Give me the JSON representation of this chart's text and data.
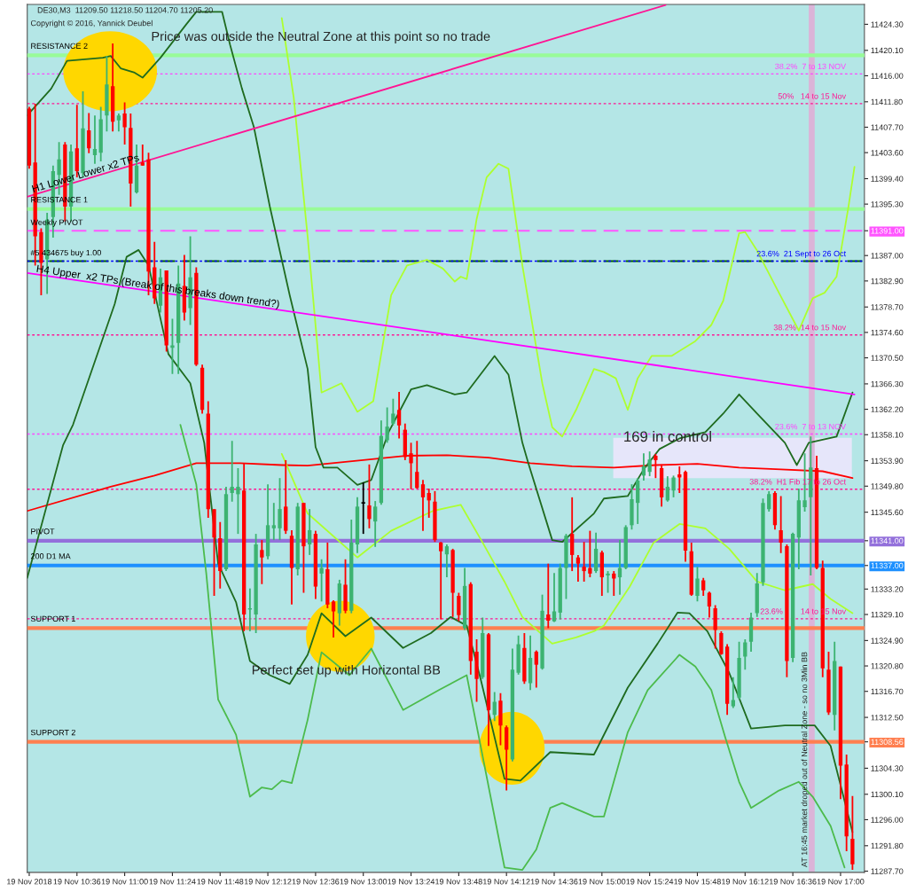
{
  "chart_data": {
    "type": "candlestick",
    "title": "DE30,M3  11209.50 11218.50 11204.70 11205.20",
    "subtitle": "Copyright © 2016, Yannick Deubel",
    "x": [
      "2018-11-19T10:12",
      "2018-11-19T10:15",
      "2018-11-19T10:18",
      "2018-11-19T10:21",
      "2018-11-19T10:24",
      "2018-11-19T10:27",
      "2018-11-19T10:30",
      "2018-11-19T10:33",
      "2018-11-19T10:36",
      "2018-11-19T10:39",
      "2018-11-19T10:42",
      "2018-11-19T10:45",
      "2018-11-19T10:48",
      "2018-11-19T10:51",
      "2018-11-19T10:54",
      "2018-11-19T10:57",
      "2018-11-19T11:00",
      "2018-11-19T11:03",
      "2018-11-19T11:06",
      "2018-11-19T11:09",
      "2018-11-19T11:12",
      "2018-11-19T11:15",
      "2018-11-19T11:18",
      "2018-11-19T11:21",
      "2018-11-19T11:24",
      "2018-11-19T11:27",
      "2018-11-19T11:30",
      "2018-11-19T11:33",
      "2018-11-19T11:36",
      "2018-11-19T11:39",
      "2018-11-19T11:42",
      "2018-11-19T11:45",
      "2018-11-19T11:48",
      "2018-11-19T11:51",
      "2018-11-19T11:54",
      "2018-11-19T11:57",
      "2018-11-19T12:00",
      "2018-11-19T12:03",
      "2018-11-19T12:06",
      "2018-11-19T12:09",
      "2018-11-19T12:12",
      "2018-11-19T12:15",
      "2018-11-19T12:18",
      "2018-11-19T12:21",
      "2018-11-19T12:24",
      "2018-11-19T12:27",
      "2018-11-19T12:30",
      "2018-11-19T12:33",
      "2018-11-19T12:36",
      "2018-11-19T12:39",
      "2018-11-19T12:42",
      "2018-11-19T12:45",
      "2018-11-19T12:48",
      "2018-11-19T12:51",
      "2018-11-19T12:54",
      "2018-11-19T12:57",
      "2018-11-19T13:00",
      "2018-11-19T13:03",
      "2018-11-19T13:06",
      "2018-11-19T13:09",
      "2018-11-19T13:12",
      "2018-11-19T13:15",
      "2018-11-19T13:18",
      "2018-11-19T13:21",
      "2018-11-19T13:24",
      "2018-11-19T13:27",
      "2018-11-19T13:30",
      "2018-11-19T13:33",
      "2018-11-19T13:36",
      "2018-11-19T13:39",
      "2018-11-19T13:42",
      "2018-11-19T13:45",
      "2018-11-19T13:48",
      "2018-11-19T13:51",
      "2018-11-19T13:54",
      "2018-11-19T13:57",
      "2018-11-19T14:00",
      "2018-11-19T14:03",
      "2018-11-19T14:06",
      "2018-11-19T14:09",
      "2018-11-19T14:12",
      "2018-11-19T14:15",
      "2018-11-19T14:18",
      "2018-11-19T14:21",
      "2018-11-19T14:24",
      "2018-11-19T14:27",
      "2018-11-19T14:30",
      "2018-11-19T14:33",
      "2018-11-19T14:36",
      "2018-11-19T14:39",
      "2018-11-19T14:42",
      "2018-11-19T14:45",
      "2018-11-19T14:48",
      "2018-11-19T14:51",
      "2018-11-19T14:54",
      "2018-11-19T14:57",
      "2018-11-19T15:00",
      "2018-11-19T15:03",
      "2018-11-19T15:06",
      "2018-11-19T15:09",
      "2018-11-19T15:12",
      "2018-11-19T15:15",
      "2018-11-19T15:18",
      "2018-11-19T15:21",
      "2018-11-19T15:24",
      "2018-11-19T15:27",
      "2018-11-19T15:30",
      "2018-11-19T15:33",
      "2018-11-19T15:36",
      "2018-11-19T15:39",
      "2018-11-19T15:42",
      "2018-11-19T15:45",
      "2018-11-19T15:48",
      "2018-11-19T15:51",
      "2018-11-19T15:54",
      "2018-11-19T15:57",
      "2018-11-19T16:00",
      "2018-11-19T16:03",
      "2018-11-19T16:06",
      "2018-11-19T16:09",
      "2018-11-19T16:12",
      "2018-11-19T16:15",
      "2018-11-19T16:18",
      "2018-11-19T16:21",
      "2018-11-19T16:24",
      "2018-11-19T16:27",
      "2018-11-19T16:30",
      "2018-11-19T16:33",
      "2018-11-19T16:36",
      "2018-11-19T16:39",
      "2018-11-19T16:42",
      "2018-11-19T16:45",
      "2018-11-19T16:48",
      "2018-11-19T16:51",
      "2018-11-19T16:54",
      "2018-11-19T16:57",
      "2018-11-19T17:00",
      "2018-11-19T17:03",
      "2018-11-19T17:06"
    ],
    "ohlc": [
      [
        11410.7,
        11411.0,
        11401.0,
        11401.5
      ],
      [
        11402.0,
        11411.5,
        11385.4,
        11390.1
      ],
      [
        11390.8,
        11391.4,
        11380.6,
        11385.8
      ],
      [
        11386.4,
        11393.9,
        11380.8,
        11392.8
      ],
      [
        11393.2,
        11401.5,
        11389.9,
        11400.6
      ],
      [
        11400.0,
        11405.3,
        11396.8,
        11402.5
      ],
      [
        11404.9,
        11405.3,
        11392.5,
        11394.9
      ],
      [
        11394.9,
        11404.9,
        11392.5,
        11403.8
      ],
      [
        11404.3,
        11411.3,
        11399.6,
        11400.6
      ],
      [
        11400.3,
        11413.5,
        11399.6,
        11407.5
      ],
      [
        11407.2,
        11410.0,
        11403.5,
        11404.3
      ],
      [
        11403.2,
        11409.6,
        11401.8,
        11404.2
      ],
      [
        11403.6,
        11411.0,
        11402.2,
        11409.0
      ],
      [
        11409.6,
        11419.2,
        11407.0,
        11414.6
      ],
      [
        11414.3,
        11421.2,
        11407.0,
        11408.6
      ],
      [
        11408.8,
        11409.9,
        11407.0,
        11409.6
      ],
      [
        11409.9,
        11411.7,
        11404.9,
        11407.7
      ],
      [
        11407.6,
        11409.9,
        11394.9,
        11398.6
      ],
      [
        11397.2,
        11404.9,
        11397.0,
        11401.5
      ],
      [
        11402.0,
        11404.9,
        11401.5,
        11401.5
      ],
      [
        11402.5,
        11403.6,
        11380.6,
        11384.4
      ],
      [
        11385.1,
        11389.2,
        11379.2,
        11380.1
      ],
      [
        11378.9,
        11384.9,
        11377.8,
        11383.5
      ],
      [
        11384.6,
        11384.6,
        11371.5,
        11372.5
      ],
      [
        11372.1,
        11376.8,
        11367.9,
        11372.5
      ],
      [
        11372.9,
        11385.4,
        11367.9,
        11382.5
      ],
      [
        11382.1,
        11387.1,
        11376.5,
        11377.8
      ],
      [
        11378.5,
        11390.1,
        11375.8,
        11383.5
      ],
      [
        11384.2,
        11385.1,
        11369.2,
        11369.4
      ],
      [
        11368.9,
        11369.4,
        11361.5,
        11362.1
      ],
      [
        11361.5,
        11363.5,
        11344.7,
        11346.1
      ],
      [
        11346.1,
        11346.1,
        11332.1,
        11341.5
      ],
      [
        11341.4,
        11344.0,
        11333.3,
        11336.1
      ],
      [
        11336.4,
        11349.7,
        11336.1,
        11348.5
      ],
      [
        11348.7,
        11357.1,
        11347.3,
        11349.7
      ],
      [
        11348.5,
        11352.7,
        11342.1,
        11349.7
      ],
      [
        11349.1,
        11353.5,
        11326.4,
        11329.1
      ],
      [
        11329.9,
        11333.3,
        11326.4,
        11330.1
      ],
      [
        11329.1,
        11342.1,
        11326.1,
        11340.4
      ],
      [
        11339.5,
        11341.1,
        11334.0,
        11338.3
      ],
      [
        11338.5,
        11350.1,
        11338.0,
        11343.5
      ],
      [
        11343.0,
        11347.1,
        11341.1,
        11343.5
      ],
      [
        11343.0,
        11351.1,
        11341.1,
        11346.1
      ],
      [
        11346.5,
        11354.0,
        11342.1,
        11342.6
      ],
      [
        11341.8,
        11342.7,
        11330.7,
        11336.6
      ],
      [
        11336.4,
        11347.1,
        11335.4,
        11346.5
      ],
      [
        11347.1,
        11347.1,
        11332.6,
        11340.1
      ],
      [
        11340.4,
        11346.1,
        11338.7,
        11342.7
      ],
      [
        11342.1,
        11342.6,
        11331.6,
        11333.6
      ],
      [
        11335.7,
        11338.0,
        11331.2,
        11336.6
      ],
      [
        11336.4,
        11340.7,
        11330.1,
        11330.7
      ],
      [
        11331.2,
        11331.4,
        11325.4,
        11329.6
      ],
      [
        11329.3,
        11334.7,
        11327.3,
        11334.1
      ],
      [
        11333.9,
        11338.0,
        11329.3,
        11329.7
      ],
      [
        11329.7,
        11344.4,
        11329.3,
        11340.7
      ],
      [
        11340.4,
        11348.0,
        11339.0,
        11346.5
      ],
      [
        11347.1,
        11350.4,
        11342.1,
        11347.1
      ],
      [
        11346.7,
        11353.3,
        11343.0,
        11344.5
      ],
      [
        11344.1,
        11347.4,
        11340.0,
        11346.5
      ],
      [
        11347.1,
        11360.4,
        11346.8,
        11357.9
      ],
      [
        11357.2,
        11362.5,
        11356.8,
        11359.4
      ],
      [
        11359.9,
        11363.9,
        11359.6,
        11361.5
      ],
      [
        11362.1,
        11365.0,
        11357.5,
        11359.6
      ],
      [
        11358.9,
        11359.9,
        11354.0,
        11354.5
      ],
      [
        11355.1,
        11356.8,
        11349.3,
        11353.5
      ],
      [
        11352.1,
        11357.1,
        11349.4,
        11349.5
      ],
      [
        11350.1,
        11350.8,
        11342.6,
        11348.0
      ],
      [
        11348.7,
        11349.4,
        11344.7,
        11347.5
      ],
      [
        11347.3,
        11349.0,
        11340.8,
        11341.1
      ],
      [
        11340.7,
        11340.8,
        11328.3,
        11339.3
      ],
      [
        11338.8,
        11340.4,
        11335.1,
        11340.1
      ],
      [
        11339.5,
        11339.7,
        11328.7,
        11332.6
      ],
      [
        11332.1,
        11332.6,
        11328.0,
        11329.0
      ],
      [
        11326.9,
        11336.6,
        11326.6,
        11333.7
      ],
      [
        11334.0,
        11334.3,
        11319.4,
        11321.6
      ],
      [
        11323.1,
        11325.1,
        11315.0,
        11318.7
      ],
      [
        11319.0,
        11328.6,
        11318.7,
        11326.1
      ],
      [
        11325.9,
        11326.1,
        11307.9,
        11313.7
      ],
      [
        11312.9,
        11316.6,
        11311.9,
        11315.0
      ],
      [
        11315.2,
        11316.4,
        11308.0,
        11311.2
      ],
      [
        11310.9,
        11311.2,
        11300.7,
        11307.3
      ],
      [
        11305.7,
        11323.6,
        11305.4,
        11320.2
      ],
      [
        11319.7,
        11325.7,
        11319.4,
        11324.3
      ],
      [
        11323.7,
        11326.1,
        11317.9,
        11318.3
      ],
      [
        11318.0,
        11325.7,
        11316.9,
        11322.1
      ],
      [
        11323.1,
        11323.3,
        11317.3,
        11321.0
      ],
      [
        11320.4,
        11332.3,
        11320.2,
        11329.7
      ],
      [
        11329.1,
        11337.3,
        11326.9,
        11328.1
      ],
      [
        11328.0,
        11335.8,
        11327.9,
        11329.6
      ],
      [
        11329.4,
        11337.3,
        11328.3,
        11336.6
      ],
      [
        11336.6,
        11342.1,
        11331.6,
        11341.8
      ],
      [
        11342.1,
        11348.0,
        11336.1,
        11338.7
      ],
      [
        11338.3,
        11338.7,
        11334.4,
        11337.3
      ],
      [
        11336.8,
        11340.8,
        11334.4,
        11336.1
      ],
      [
        11336.6,
        11342.6,
        11335.1,
        11335.7
      ],
      [
        11336.1,
        11342.3,
        11335.8,
        11339.7
      ],
      [
        11339.1,
        11339.4,
        11332.1,
        11335.1
      ],
      [
        11335.4,
        11336.1,
        11332.6,
        11335.7
      ],
      [
        11335.7,
        11336.1,
        11332.1,
        11334.9
      ],
      [
        11335.1,
        11341.1,
        11332.3,
        11336.6
      ],
      [
        11336.6,
        11343.5,
        11336.4,
        11343.2
      ],
      [
        11343.5,
        11350.1,
        11342.8,
        11347.7
      ],
      [
        11347.1,
        11351.1,
        11343.7,
        11350.7
      ],
      [
        11351.5,
        11355.1,
        11350.7,
        11353.0
      ],
      [
        11352.1,
        11355.4,
        11351.4,
        11354.1
      ],
      [
        11354.7,
        11355.0,
        11351.1,
        11354.0
      ],
      [
        11352.7,
        11353.3,
        11346.5,
        11348.0
      ],
      [
        11347.5,
        11351.4,
        11347.3,
        11349.7
      ],
      [
        11349.1,
        11351.5,
        11348.0,
        11351.2
      ],
      [
        11351.7,
        11353.0,
        11348.7,
        11351.2
      ],
      [
        11352.1,
        11352.3,
        11337.6,
        11339.4
      ],
      [
        11339.3,
        11340.7,
        11332.1,
        11332.3
      ],
      [
        11332.1,
        11336.8,
        11331.2,
        11334.9
      ],
      [
        11334.6,
        11335.0,
        11332.1,
        11333.0
      ],
      [
        11332.6,
        11332.8,
        11328.6,
        11330.4
      ],
      [
        11330.1,
        11330.6,
        11323.6,
        11326.6
      ],
      [
        11326.1,
        11326.4,
        11322.6,
        11322.7
      ],
      [
        11323.9,
        11324.3,
        11312.9,
        11314.7
      ],
      [
        11314.3,
        11319.0,
        11314.0,
        11315.3
      ],
      [
        11315.7,
        11324.7,
        11315.4,
        11322.1
      ],
      [
        11322.3,
        11325.1,
        11320.2,
        11324.6
      ],
      [
        11324.7,
        11329.4,
        11323.1,
        11328.6
      ],
      [
        11329.3,
        11335.8,
        11328.7,
        11334.1
      ],
      [
        11334.3,
        11347.8,
        11333.7,
        11347.1
      ],
      [
        11346.1,
        11349.0,
        11345.7,
        11348.5
      ],
      [
        11348.7,
        11349.0,
        11342.8,
        11343.5
      ],
      [
        11342.7,
        11348.2,
        11339.0,
        11340.7
      ],
      [
        11340.1,
        11340.4,
        11319.0,
        11321.6
      ],
      [
        11322.1,
        11342.3,
        11321.4,
        11342.1
      ],
      [
        11341.5,
        11349.4,
        11336.4,
        11347.5
      ],
      [
        11346.4,
        11355.1,
        11345.7,
        11347.5
      ],
      [
        11348.0,
        11357.8,
        11335.4,
        11352.8
      ],
      [
        11352.7,
        11354.7,
        11336.4,
        11336.6
      ],
      [
        11336.6,
        11337.8,
        11319.0,
        11320.4
      ],
      [
        11320.2,
        11323.1,
        11312.9,
        11313.3
      ],
      [
        11312.9,
        11324.7,
        11310.4,
        11321.6
      ],
      [
        11320.7,
        11320.7,
        11299.3,
        11304.7
      ],
      [
        11304.9,
        11306.5,
        11290.9,
        11293.3
      ],
      [
        11292.9,
        11299.8,
        11287.9,
        11288.8
      ]
    ],
    "colors": [
      "#ff0000",
      "#ff0000",
      "#ff0000",
      "#3cb371",
      "#3cb371",
      "#3cb371",
      "#ff0000",
      "#3cb371",
      "#ff0000",
      "#3cb371",
      "#ff0000",
      "#3cb371",
      "#3cb371",
      "#3cb371",
      "#ff0000",
      "#3cb371",
      "#ff0000",
      "#ff0000",
      "#3cb371",
      "#ff0000",
      "#ff0000",
      "#ff0000",
      "#3cb371",
      "#ff0000",
      "#3cb371",
      "#3cb371",
      "#ff0000",
      "#3cb371",
      "#ff0000",
      "#ff0000",
      "#ff0000",
      "#ff0000",
      "#ff0000",
      "#3cb371",
      "#3cb371",
      "#3cb371",
      "#ff0000",
      "#3cb371",
      "#3cb371",
      "#ff0000",
      "#3cb371",
      "#3cb371",
      "#3cb371",
      "#ff0000",
      "#ff0000",
      "#3cb371",
      "#ff0000",
      "#3cb371",
      "#ff0000",
      "#3cb371",
      "#ff0000",
      "#ff0000",
      "#3cb371",
      "#ff0000",
      "#3cb371",
      "#3cb371",
      "#000000",
      "#ff0000",
      "#3cb371",
      "#3cb371",
      "#3cb371",
      "#3cb371",
      "#ff0000",
      "#ff0000",
      "#ff0000",
      "#ff0000",
      "#ff0000",
      "#ff0000",
      "#ff0000",
      "#ff0000",
      "#3cb371",
      "#ff0000",
      "#ff0000",
      "#3cb371",
      "#ff0000",
      "#ff0000",
      "#3cb371",
      "#ff0000",
      "#3cb371",
      "#ff0000",
      "#ff0000",
      "#3cb371",
      "#3cb371",
      "#ff0000",
      "#3cb371",
      "#ff0000",
      "#3cb371",
      "#ff0000",
      "#3cb371",
      "#3cb371",
      "#3cb371",
      "#ff0000",
      "#ff0000",
      "#ff0000",
      "#ff0000",
      "#3cb371",
      "#ff0000",
      "#3cb371",
      "#ff0000",
      "#3cb371",
      "#3cb371",
      "#3cb371",
      "#3cb371",
      "#3cb371",
      "#3cb371",
      "#ff0000",
      "#ff0000",
      "#3cb371",
      "#3cb371",
      "#ff0000",
      "#ff0000",
      "#ff0000",
      "#3cb371",
      "#ff0000",
      "#ff0000",
      "#ff0000",
      "#ff0000",
      "#ff0000",
      "#3cb371",
      "#3cb371",
      "#3cb371",
      "#3cb371",
      "#3cb371",
      "#3cb371",
      "#3cb371",
      "#ff0000",
      "#ff0000",
      "#ff0000",
      "#3cb371",
      "#3cb371",
      "#3cb371",
      "#3cb371",
      "#ff0000",
      "#ff0000",
      "#ff0000",
      "#3cb371",
      "#ff0000",
      "#ff0000",
      "#ff0000"
    ],
    "series": [
      {
        "type": "line",
        "color": "#ff0000",
        "x": [
          "2018-11-19T10:11",
          "2018-11-19T10:53",
          "2018-11-19T11:15",
          "2018-11-19T11:36",
          "2018-11-19T11:58",
          "2018-11-19T12:19",
          "2018-11-19T12:32",
          "2018-11-19T13:00",
          "2018-11-19T13:21",
          "2018-11-19T13:42",
          "2018-11-19T14:03",
          "2018-11-19T14:24",
          "2018-11-19T14:45",
          "2018-11-19T15:06",
          "2018-11-19T15:27",
          "2018-11-19T15:48",
          "2018-11-19T16:09",
          "2018-11-19T16:30",
          "2018-11-19T16:51",
          "2018-11-19T17:06"
        ],
        "values": [
          11345.8,
          11349.7,
          11351.5,
          11353.5,
          11353.5,
          11353.2,
          11353.1,
          11354.0,
          11354.7,
          11354.8,
          11354.4,
          11353.5,
          11353.0,
          11352.8,
          11353.2,
          11353.4,
          11352.8,
          11352.5,
          11352.2,
          11351.1
        ]
      },
      {
        "type": "line",
        "color": "#1f6b1f",
        "x": [
          "2018-11-19T10:11",
          "2018-11-19T10:23",
          "2018-11-19T10:31",
          "2018-11-19T10:49",
          "2018-11-19T10:53",
          "2018-11-19T10:58",
          "2018-11-19T11:05",
          "2018-11-19T11:09",
          "2018-11-19T11:18",
          "2018-11-19T11:31",
          "2018-11-19T11:36",
          "2018-11-19T11:49",
          "2018-11-19T11:53",
          "2018-11-19T11:59",
          "2018-11-19T12:05",
          "2018-11-19T12:13",
          "2018-11-19T12:23",
          "2018-11-19T12:32",
          "2018-11-19T12:36",
          "2018-11-19T12:40",
          "2018-11-19T12:47",
          "2018-11-19T12:57",
          "2018-11-19T13:04",
          "2018-11-19T13:13",
          "2018-11-19T13:24",
          "2018-11-19T13:32",
          "2018-11-19T13:46",
          "2018-11-19T13:52",
          "2018-11-19T14:06",
          "2018-11-19T14:13",
          "2018-11-19T14:20",
          "2018-11-19T14:23",
          "2018-11-19T14:35",
          "2018-11-19T14:40",
          "2018-11-19T14:56",
          "2018-11-19T15:01",
          "2018-11-19T15:13",
          "2018-11-19T15:21",
          "2018-11-19T15:29",
          "2018-11-19T15:39",
          "2018-11-19T15:52",
          "2018-11-19T16:01",
          "2018-11-19T16:09",
          "2018-11-19T16:18",
          "2018-11-19T16:32",
          "2018-11-19T16:38",
          "2018-11-19T16:44",
          "2018-11-19T16:58",
          "2018-11-19T17:06"
        ],
        "values": [
          11409.6,
          11413.9,
          11418.4,
          11418.9,
          11419.2,
          11417.2,
          11416.5,
          11415.7,
          11418.9,
          11424.3,
          11426.3,
          11426.3,
          11421.0,
          11413.9,
          11407.7,
          11394.9,
          11380.6,
          11368.7,
          11356.1,
          11352.8,
          11352.8,
          11350.0,
          11350.8,
          11358.7,
          11365.4,
          11366.1,
          11364.6,
          11364.9,
          11370.8,
          11367.8,
          11356.8,
          11353.5,
          11341.1,
          11340.8,
          11345.4,
          11347.8,
          11348.2,
          11352.5,
          11355.8,
          11357.5,
          11358.5,
          11361.5,
          11364.6,
          11361.5,
          11356.8,
          11353.2,
          11356.8,
          11357.8,
          11364.9
        ]
      },
      {
        "type": "line",
        "color": "#1f6b1f",
        "x": [
          "2018-11-19T10:11",
          "2018-11-19T10:29",
          "2018-11-19T10:34",
          "2018-11-19T10:55",
          "2018-11-19T11:01",
          "2018-11-19T11:07",
          "2018-11-19T11:12",
          "2018-11-19T11:22",
          "2018-11-19T11:33",
          "2018-11-19T11:40",
          "2018-11-19T11:47",
          "2018-11-19T11:56",
          "2018-11-19T12:03",
          "2018-11-19T12:13",
          "2018-11-19T12:23",
          "2018-11-19T12:32",
          "2018-11-19T12:39",
          "2018-11-19T12:51",
          "2018-11-19T13:04",
          "2018-11-19T13:20",
          "2018-11-19T13:34",
          "2018-11-19T13:44",
          "2018-11-19T13:52",
          "2018-11-19T13:59",
          "2018-11-19T14:11",
          "2018-11-19T14:19",
          "2018-11-19T14:34",
          "2018-11-19T14:56",
          "2018-11-19T15:13",
          "2018-11-19T15:28",
          "2018-11-19T15:38",
          "2018-11-19T15:44",
          "2018-11-19T15:53",
          "2018-11-19T16:04",
          "2018-11-19T16:15",
          "2018-11-19T16:32",
          "2018-11-19T16:47",
          "2018-11-19T16:55",
          "2018-11-19T17:06"
        ],
        "values": [
          11335.0,
          11356.4,
          11359.7,
          11379.2,
          11386.8,
          11387.9,
          11385.4,
          11371.1,
          11366.4,
          11356.8,
          11337.3,
          11331.1,
          11321.6,
          11319.3,
          11317.9,
          11322.6,
          11329.3,
          11325.6,
          11328.6,
          11323.7,
          11326.1,
          11328.7,
          11327.3,
          11318.7,
          11302.6,
          11302.3,
          11306.9,
          11306.5,
          11317.3,
          11324.4,
          11329.4,
          11329.3,
          11326.4,
          11319.7,
          11310.7,
          11311.2,
          11311.2,
          11307.9,
          11294.0
        ]
      },
      {
        "type": "line",
        "color": "#4cbb4c",
        "x": [
          "2018-11-19T11:28",
          "2018-11-19T11:36",
          "2018-11-19T11:41",
          "2018-11-19T11:47",
          "2018-11-19T11:56",
          "2018-11-19T12:03",
          "2018-11-19T12:09",
          "2018-11-19T12:14",
          "2018-11-19T12:19",
          "2018-11-19T12:24",
          "2018-11-19T12:32",
          "2018-11-19T12:39",
          "2018-11-19T12:53",
          "2018-11-19T13:04",
          "2018-11-19T13:20",
          "2018-11-19T13:38",
          "2018-11-19T13:52",
          "2018-11-19T14:11",
          "2018-11-19T14:20",
          "2018-11-19T14:27",
          "2018-11-19T14:34",
          "2018-11-19T14:40",
          "2018-11-19T14:56",
          "2018-11-19T15:01",
          "2018-11-19T15:13",
          "2018-11-19T15:23",
          "2018-11-19T15:39",
          "2018-11-19T15:47",
          "2018-11-19T15:55",
          "2018-11-19T16:02",
          "2018-11-19T16:09",
          "2018-11-19T16:15",
          "2018-11-19T16:29",
          "2018-11-19T16:39",
          "2018-11-19T16:46",
          "2018-11-19T16:55",
          "2018-11-19T17:02"
        ],
        "values": [
          11359.7,
          11350.1,
          11335.8,
          11315.4,
          11309.7,
          11299.7,
          11301.2,
          11300.9,
          11302.3,
          11301.9,
          11312.1,
          11323.0,
          11319.3,
          11323.6,
          11313.7,
          11316.9,
          11319.3,
          11288.3,
          11287.9,
          11291.2,
          11297.9,
          11298.7,
          11296.5,
          11296.5,
          11310.1,
          11316.9,
          11322.6,
          11320.7,
          11316.9,
          11309.3,
          11302.1,
          11297.9,
          11300.7,
          11302.1,
          11299.7,
          11295.0,
          11288.3
        ]
      },
      {
        "type": "line",
        "color": "#adff2f",
        "x": [
          "2018-11-19T12:19",
          "2018-11-19T12:25",
          "2018-11-19T12:32",
          "2018-11-19T12:39",
          "2018-11-19T12:49",
          "2018-11-19T12:57",
          "2018-11-19T13:05",
          "2018-11-19T13:14",
          "2018-11-19T13:22",
          "2018-11-19T13:32",
          "2018-11-19T13:40",
          "2018-11-19T13:46",
          "2018-11-19T13:49",
          "2018-11-19T13:52",
          "2018-11-19T13:57",
          "2018-11-19T14:02",
          "2018-11-19T14:08",
          "2018-11-19T14:13",
          "2018-11-19T14:20",
          "2018-11-19T14:30",
          "2018-11-19T14:35",
          "2018-11-19T14:40",
          "2018-11-19T14:47",
          "2018-11-19T14:56",
          "2018-11-19T15:01",
          "2018-11-19T15:07",
          "2018-11-19T15:13",
          "2018-11-19T15:18",
          "2018-11-19T15:25",
          "2018-11-19T15:35",
          "2018-11-19T15:47",
          "2018-11-19T15:55",
          "2018-11-19T16:01",
          "2018-11-19T16:09",
          "2018-11-19T16:12",
          "2018-11-19T16:18",
          "2018-11-19T16:29",
          "2018-11-19T16:39",
          "2018-11-19T16:46",
          "2018-11-19T16:52",
          "2018-11-19T16:58",
          "2018-11-19T17:04",
          "2018-11-19T17:07"
        ],
        "values": [
          11425.3,
          11412.5,
          11390.1,
          11364.9,
          11366.4,
          11361.8,
          11363.5,
          11380.6,
          11385.4,
          11386.3,
          11384.9,
          11382.8,
          11383.6,
          11383.2,
          11392.9,
          11399.6,
          11401.8,
          11401.0,
          11385.4,
          11366.4,
          11359.3,
          11357.8,
          11362.1,
          11368.7,
          11368.2,
          11367.2,
          11362.1,
          11367.2,
          11370.8,
          11370.8,
          11373.2,
          11375.8,
          11379.7,
          11390.6,
          11390.8,
          11387.8,
          11381.0,
          11374.9,
          11380.1,
          11381.0,
          11383.6,
          11394.9,
          11401.3
        ]
      },
      {
        "type": "line",
        "color": "#adff2f",
        "x": [
          "2018-11-19T12:19",
          "2018-11-19T12:32",
          "2018-11-19T12:57",
          "2018-11-19T13:14",
          "2018-11-19T13:35",
          "2018-11-19T13:49",
          "2018-11-19T14:00",
          "2018-11-19T14:11",
          "2018-11-19T14:20",
          "2018-11-19T14:35",
          "2018-11-19T14:47",
          "2018-11-19T14:56",
          "2018-11-19T15:01",
          "2018-11-19T15:14",
          "2018-11-19T15:26",
          "2018-11-19T15:39",
          "2018-11-19T15:52",
          "2018-11-19T16:04",
          "2018-11-19T16:18",
          "2018-11-19T16:32",
          "2018-11-19T16:46",
          "2018-11-19T16:55",
          "2018-11-19T17:06"
        ],
        "values": [
          11355.0,
          11345.4,
          11338.3,
          11342.6,
          11345.8,
          11346.8,
          11340.7,
          11334.4,
          11328.7,
          11324.4,
          11325.4,
          11326.4,
          11327.3,
          11333.6,
          11340.7,
          11343.7,
          11343.0,
          11339.7,
          11334.4,
          11333.0,
          11334.0,
          11331.6,
          11329.3
        ]
      },
      {
        "type": "line",
        "name": "H1 Lower Lower x2 TPs",
        "color": "#ff1493",
        "x": [
          "2018-11-19T10:11",
          "2018-11-19T15:32"
        ],
        "values": [
          11396.5,
          11427.4
        ]
      },
      {
        "type": "line",
        "name": "H4 Upper  x2 TPs (Break of this breaks down trend?)",
        "color": "#ff00ff",
        "x": [
          "2018-11-19T10:11",
          "2018-11-19T17:07"
        ],
        "values": [
          11384.2,
          11364.6
        ]
      }
    ],
    "ref_lines": [
      {
        "axis": "y",
        "value": 11419.3,
        "label": "RESISTANCE 2",
        "color": "#98fb98",
        "line_style": "solid"
      },
      {
        "axis": "y",
        "value": 11416.3,
        "label": "38.2%  7 to 13 NOV",
        "color": "#ff44ff",
        "line_style": "dotted"
      },
      {
        "axis": "y",
        "value": 11411.5,
        "label": "50%   14 to 15 Nov",
        "color": "#ff1493",
        "line_style": "dotted"
      },
      {
        "axis": "y",
        "value": 11394.5,
        "label": "RESISTANCE 1",
        "color": "#98fb98",
        "line_style": "solid"
      },
      {
        "axis": "y",
        "value": 11391.0,
        "label": "Weekly PIVOT",
        "color": "#ff55ff",
        "line_style": "dashed"
      },
      {
        "axis": "y",
        "value": 11386.1,
        "label": "#5 434675 buy 1.00",
        "color": "#006400",
        "line_style": "dashed"
      },
      {
        "axis": "y",
        "value": 11386.1,
        "label": "23.6%  21 Sept to 26 Oct",
        "color": "#0000ff",
        "line_style": "dotted"
      },
      {
        "axis": "y",
        "value": 11374.2,
        "label": "38.2%  14 to 15 Nov",
        "color": "#ff1493",
        "line_style": "dotted"
      },
      {
        "axis": "y",
        "value": 11358.2,
        "label": "23.6%  7 to 13 NOV",
        "color": "#ff44ff",
        "line_style": "dotted"
      },
      {
        "axis": "y",
        "value": 11349.3,
        "label": "38.2%  H1 Fib 17 to 26 Oct",
        "color": "#ff1493",
        "line_style": "dotted"
      },
      {
        "axis": "y",
        "value": 11341.0,
        "label": "PIVOT",
        "color": "#9370db",
        "line_style": "solid"
      },
      {
        "axis": "y",
        "value": 11337.0,
        "label": "200 D1 MA",
        "color": "#1e90ff",
        "line_style": "solid"
      },
      {
        "axis": "y",
        "value": 11328.4,
        "label": "23.6%        14 to 15 Nov",
        "color": "#ff1493",
        "line_style": "dotted"
      },
      {
        "axis": "y",
        "value": 11326.9,
        "label": "SUPPORT 1",
        "color": "#ff7f50",
        "line_style": "solid"
      },
      {
        "axis": "y",
        "value": 11308.56,
        "label": "SUPPORT 2",
        "color": "#ff7f50",
        "line_style": "solid"
      }
    ],
    "bands": [
      {
        "axis": "x",
        "from": "2018-11-19T16:44",
        "to": "2018-11-19T16:47",
        "label": "AT 16:45 market droped out of Neutral Zone - so no 3Min BB",
        "color": "#dbb4d8"
      },
      {
        "axis": "y",
        "from": 11351.1,
        "to": 11357.6,
        "label": "169 in control",
        "color": "#e6e6fa"
      }
    ],
    "annotations": [
      "Price was outside the Neutral Zone at this point so no trade",
      "Perfect set up with Horizontal BB"
    ],
    "xlim": [
      "2018-11-19T10:11",
      "2018-11-19T17:12"
    ],
    "ylim": [
      11287.5,
      11427.5
    ],
    "xticks": [
      {
        "value": "2018-11-19T10:12",
        "label": "19 Nov 2018"
      },
      {
        "value": "2018-11-19T10:36",
        "label": "19 Nov 10:36"
      },
      {
        "value": "2018-11-19T11:00",
        "label": "19 Nov 11:00"
      },
      {
        "value": "2018-11-19T11:24",
        "label": "19 Nov 11:24"
      },
      {
        "value": "2018-11-19T11:48",
        "label": "19 Nov 11:48"
      },
      {
        "value": "2018-11-19T12:12",
        "label": "19 Nov 12:12"
      },
      {
        "value": "2018-11-19T12:36",
        "label": "19 Nov 12:36"
      },
      {
        "value": "2018-11-19T13:00",
        "label": "19 Nov 13:00"
      },
      {
        "value": "2018-11-19T13:24",
        "label": "19 Nov 13:24"
      },
      {
        "value": "2018-11-19T13:48",
        "label": "19 Nov 13:48"
      },
      {
        "value": "2018-11-19T14:12",
        "label": "19 Nov 14:12"
      },
      {
        "value": "2018-11-19T14:36",
        "label": "19 Nov 14:36"
      },
      {
        "value": "2018-11-19T15:00",
        "label": "19 Nov 15:00"
      },
      {
        "value": "2018-11-19T15:24",
        "label": "19 Nov 15:24"
      },
      {
        "value": "2018-11-19T15:48",
        "label": "19 Nov 15:48"
      },
      {
        "value": "2018-11-19T16:12",
        "label": "19 Nov 16:12"
      },
      {
        "value": "2018-11-19T16:36",
        "label": "19 Nov 16:36"
      },
      {
        "value": "2018-11-19T17:00",
        "label": "19 Nov 17:00"
      }
    ],
    "yticks": [
      {
        "value": 11424.3,
        "label": "11424.30"
      },
      {
        "value": 11420.1,
        "label": "11420.10"
      },
      {
        "value": 11416.0,
        "label": "11416.00"
      },
      {
        "value": 11411.8,
        "label": "11411.80"
      },
      {
        "value": 11407.7,
        "label": "11407.70"
      },
      {
        "value": 11403.6,
        "label": "11403.60"
      },
      {
        "value": 11399.4,
        "label": "11399.40"
      },
      {
        "value": 11395.3,
        "label": "11395.30"
      },
      {
        "value": 11391.0,
        "label": "11391.00"
      },
      {
        "value": 11387.0,
        "label": "11387.00"
      },
      {
        "value": 11382.9,
        "label": "11382.90"
      },
      {
        "value": 11378.7,
        "label": "11378.70"
      },
      {
        "value": 11374.6,
        "label": "11374.60"
      },
      {
        "value": 11370.5,
        "label": "11370.50"
      },
      {
        "value": 11366.3,
        "label": "11366.30"
      },
      {
        "value": 11362.2,
        "label": "11362.20"
      },
      {
        "value": 11358.1,
        "label": "11358.10"
      },
      {
        "value": 11353.9,
        "label": "11353.90"
      },
      {
        "value": 11349.8,
        "label": "11349.80"
      },
      {
        "value": 11345.6,
        "label": "11345.60"
      },
      {
        "value": 11341.0,
        "label": "11341.00"
      },
      {
        "value": 11337.0,
        "label": "11337.00"
      },
      {
        "value": 11333.2,
        "label": "11333.20"
      },
      {
        "value": 11329.1,
        "label": "11329.10"
      },
      {
        "value": 11324.9,
        "label": "11324.90"
      },
      {
        "value": 11320.8,
        "label": "11320.80"
      },
      {
        "value": 11316.7,
        "label": "11316.70"
      },
      {
        "value": 11312.5,
        "label": "11312.50"
      },
      {
        "value": 11308.56,
        "label": "11308.56"
      },
      {
        "value": 11304.3,
        "label": "11304.30"
      },
      {
        "value": 11300.1,
        "label": "11300.10"
      },
      {
        "value": 11296.0,
        "label": "11296.00"
      },
      {
        "value": 11291.8,
        "label": "11291.80"
      },
      {
        "value": 11287.7,
        "label": "11287.70"
      }
    ],
    "grid": false,
    "legend": false
  }
}
